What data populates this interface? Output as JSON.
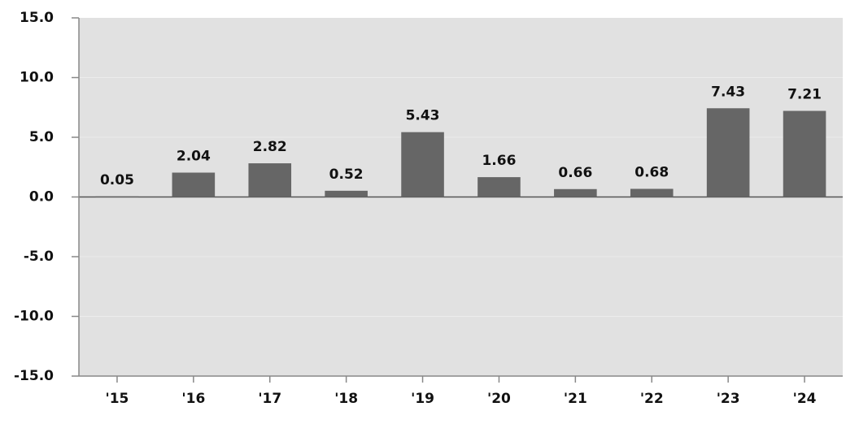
{
  "chart_data": {
    "type": "bar",
    "categories": [
      "'15",
      "'16",
      "'17",
      "'18",
      "'19",
      "'20",
      "'21",
      "'22",
      "'23",
      "'24"
    ],
    "values": [
      0.05,
      2.04,
      2.82,
      0.52,
      5.43,
      1.66,
      0.66,
      0.68,
      7.43,
      7.21
    ],
    "color": "#666666",
    "ylim": [
      -15,
      15
    ],
    "yticks": [
      {
        "value": -15,
        "label": "-15.0"
      },
      {
        "value": -10,
        "label": "-10.0"
      },
      {
        "value": -5,
        "label": "-5.0"
      },
      {
        "value": 0,
        "label": "0.0"
      },
      {
        "value": 5,
        "label": "5.0"
      },
      {
        "value": 10,
        "label": "10.0"
      },
      {
        "value": 15,
        "label": "15.0"
      }
    ],
    "grid": true
  }
}
